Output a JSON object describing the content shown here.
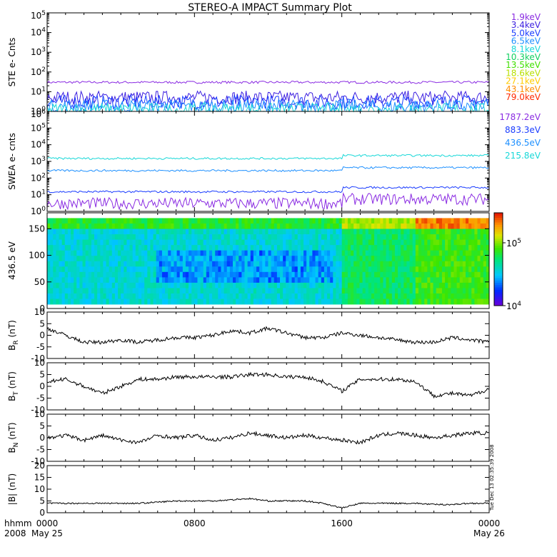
{
  "title": "STEREO-A IMPACT Summary Plot",
  "side_label": "Tue Dec 13 02:35:39 2008",
  "time_axis": {
    "left_label_top": "hhmm",
    "left_label_bottom": "2008",
    "ticks": [
      {
        "hour": 0,
        "label": "0000",
        "sublabel": "May 25"
      },
      {
        "hour": 8,
        "label": "0800",
        "sublabel": ""
      },
      {
        "hour": 16,
        "label": "1600",
        "sublabel": ""
      },
      {
        "hour": 24,
        "label": "0000",
        "sublabel": "May 26"
      }
    ],
    "range_hours": [
      0,
      24
    ]
  },
  "colors": {
    "frame": "#000000",
    "spectro_low": "#5b1bff",
    "spectro_high": "#ff2a00"
  },
  "chart_data": [
    {
      "type": "line",
      "id": "ste",
      "ylabel": "STE e- Cnts",
      "yscale": "log",
      "ylim": [
        1,
        100000
      ],
      "yticks": [
        "10^0",
        "10^1",
        "10^2",
        "10^3",
        "10^4",
        "10^5"
      ],
      "series": [
        {
          "name": "1.9keV",
          "color": "#8a2be2",
          "level": 30
        },
        {
          "name": "3.4keV",
          "color": "#3c1fe0",
          "level": 5
        },
        {
          "name": "5.0keV",
          "color": "#1a3cff",
          "level": 3
        },
        {
          "name": "6.5keV",
          "color": "#1e90ff",
          "level": 1.8
        },
        {
          "name": "8.1keV",
          "color": "#18d8d8",
          "level": 1.2
        },
        {
          "name": "10.3keV",
          "color": "#10d060",
          "level": 0
        },
        {
          "name": "13.5keV",
          "color": "#40e000",
          "level": 0
        },
        {
          "name": "18.6keV",
          "color": "#b8e000",
          "level": 0
        },
        {
          "name": "27.1keV",
          "color": "#ffcc00",
          "level": 0
        },
        {
          "name": "43.1keV",
          "color": "#ff8c00",
          "level": 0
        },
        {
          "name": "79.0keV",
          "color": "#ff2a00",
          "level": 0
        }
      ]
    },
    {
      "type": "line",
      "id": "swea",
      "ylabel": "SWEA e- cnts",
      "yscale": "log",
      "ylim": [
        1,
        1000000
      ],
      "yticks": [
        "10^0",
        "10^1",
        "10^2",
        "10^3",
        "10^4",
        "10^5",
        "10^6"
      ],
      "series": [
        {
          "name": "1787.2eV",
          "color": "#8a2be2",
          "level": 3
        },
        {
          "name": "883.3eV",
          "color": "#1a3cff",
          "level": 15
        },
        {
          "name": "436.5eV",
          "color": "#1e90ff",
          "level": 280
        },
        {
          "name": "215.8eV",
          "color": "#18d8d8",
          "level": 1500
        }
      ]
    },
    {
      "type": "heatmap",
      "id": "pad",
      "ylabel": "436.5 eV",
      "ylim": [
        0,
        180
      ],
      "yticks": [
        "0",
        "50",
        "100",
        "150"
      ],
      "colorbar": {
        "scale": "log",
        "labels": [
          "10^4",
          "10^5"
        ],
        "range": [
          10000,
          300000
        ]
      }
    },
    {
      "type": "line",
      "id": "br",
      "ylabel": "B",
      "ysub": "R",
      "yunit": " (nT)",
      "ylim": [
        -10,
        10
      ],
      "yticks": [
        "-10",
        "-5",
        "0",
        "5",
        "10"
      ],
      "series": [
        {
          "name": "BR",
          "color": "#000000",
          "x": [
            0,
            1,
            2,
            3,
            4,
            5,
            6,
            7,
            8,
            9,
            10,
            11,
            12,
            13,
            14,
            15,
            16,
            17,
            18,
            19,
            20,
            21,
            22,
            23,
            24
          ],
          "values": [
            3,
            0,
            -3,
            -3,
            -2,
            -3,
            -2,
            -1,
            -1,
            0,
            2,
            1,
            3,
            1,
            -1,
            -1,
            1,
            0,
            -1,
            -2,
            -3,
            -3,
            -1,
            -2,
            -3
          ]
        }
      ]
    },
    {
      "type": "line",
      "id": "bt",
      "ylabel": "B",
      "ysub": "T",
      "yunit": " (nT)",
      "ylim": [
        -10,
        10
      ],
      "yticks": [
        "-10",
        "-5",
        "0",
        "5",
        "10"
      ],
      "series": [
        {
          "name": "BT",
          "color": "#000000",
          "x": [
            0,
            1,
            2,
            3,
            4,
            5,
            6,
            7,
            8,
            9,
            10,
            11,
            12,
            13,
            14,
            15,
            16,
            17,
            18,
            19,
            20,
            21,
            22,
            23,
            24
          ],
          "values": [
            2,
            3,
            0,
            -3,
            0,
            3,
            3,
            4,
            4,
            4,
            4,
            5,
            5,
            4,
            4,
            2,
            -2,
            3,
            3,
            3,
            2,
            -4,
            -3,
            -4,
            -1
          ]
        }
      ]
    },
    {
      "type": "line",
      "id": "bn",
      "ylabel": "B",
      "ysub": "N",
      "yunit": " (nT)",
      "ylim": [
        -10,
        10
      ],
      "yticks": [
        "-10",
        "-5",
        "0",
        "5",
        "10"
      ],
      "series": [
        {
          "name": "BN",
          "color": "#000000",
          "x": [
            0,
            1,
            2,
            3,
            4,
            5,
            6,
            7,
            8,
            9,
            10,
            11,
            12,
            13,
            14,
            15,
            16,
            17,
            18,
            19,
            20,
            21,
            22,
            23,
            24
          ],
          "values": [
            0,
            1,
            -1,
            1,
            -1,
            -2,
            1,
            0,
            1,
            -1,
            0,
            2,
            1,
            0,
            1,
            0,
            -1,
            -2,
            1,
            2,
            1,
            0,
            1,
            2,
            2
          ]
        }
      ]
    },
    {
      "type": "line",
      "id": "bmag",
      "ylabel": "|B| (nT)",
      "ylim": [
        0,
        20
      ],
      "yticks": [
        "0",
        "5",
        "10",
        "15",
        "20"
      ],
      "series": [
        {
          "name": "|B|",
          "color": "#000000",
          "x": [
            0,
            1,
            2,
            3,
            4,
            5,
            6,
            7,
            8,
            9,
            10,
            11,
            12,
            13,
            14,
            15,
            16,
            17,
            18,
            19,
            20,
            21,
            22,
            23,
            24
          ],
          "values": [
            4,
            4,
            4,
            4,
            4,
            4,
            4.5,
            5,
            5,
            5,
            5.5,
            6,
            5,
            5,
            5,
            4,
            2,
            4,
            4,
            4,
            4,
            3.5,
            3.5,
            4,
            4
          ]
        }
      ]
    }
  ]
}
